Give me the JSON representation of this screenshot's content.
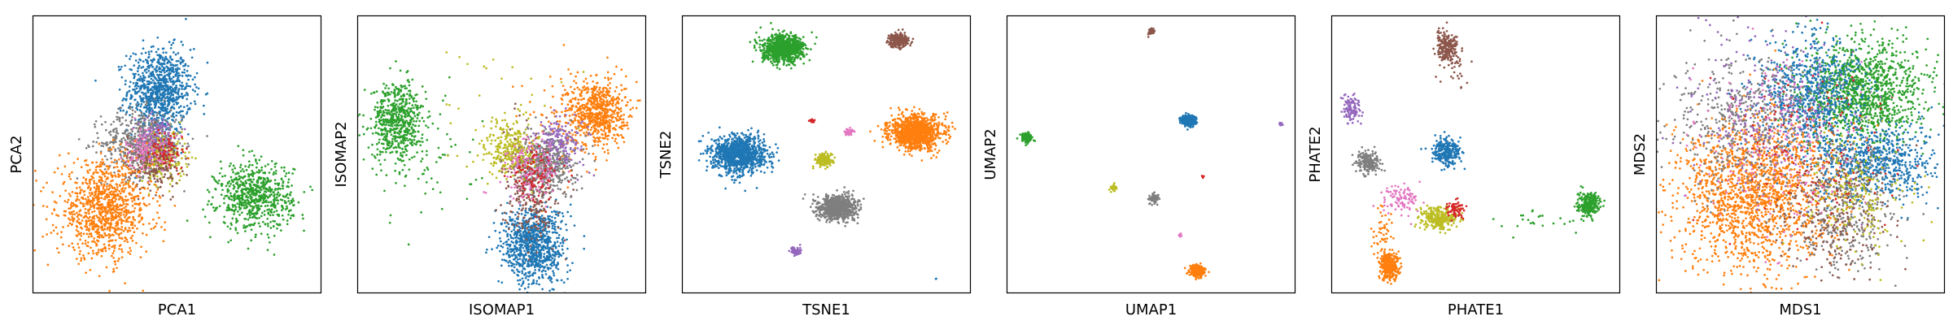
{
  "figure": {
    "panels": 6,
    "series_colors": {
      "blue": "#1f77b4",
      "orange": "#ff7f0e",
      "green": "#2ca02c",
      "red": "#d62728",
      "purple": "#9467bd",
      "brown": "#8c564b",
      "pink": "#e377c2",
      "gray": "#7f7f7f",
      "olive": "#bcbd22"
    }
  },
  "chart_data": [
    {
      "type": "scatter",
      "title": "",
      "xlabel": "PCA1",
      "ylabel": "PCA2",
      "xlim": [
        0,
        100
      ],
      "ylim": [
        0,
        100
      ],
      "ticks": "none",
      "grid": false,
      "clusters": [
        {
          "color": "#1f77b4",
          "x": 44,
          "y": 73,
          "sx": 5.5,
          "sy": 7.5,
          "n": 900
        },
        {
          "color": "#7f7f7f",
          "x": 38,
          "y": 54,
          "sx": 7.0,
          "sy": 6.0,
          "n": 600
        },
        {
          "color": "#bcbd22",
          "x": 45,
          "y": 49,
          "sx": 4.0,
          "sy": 5.0,
          "n": 220
        },
        {
          "color": "#8c564b",
          "x": 42,
          "y": 47,
          "sx": 4.5,
          "sy": 5.0,
          "n": 200
        },
        {
          "color": "#e377c2",
          "x": 40,
          "y": 52,
          "sx": 4.0,
          "sy": 4.0,
          "n": 150
        },
        {
          "color": "#9467bd",
          "x": 43,
          "y": 57,
          "sx": 3.5,
          "sy": 3.5,
          "n": 90
        },
        {
          "color": "#d62728",
          "x": 47,
          "y": 52,
          "sx": 3.0,
          "sy": 3.5,
          "n": 70
        },
        {
          "color": "#ff7f0e",
          "x": 25,
          "y": 30,
          "sx": 8.0,
          "sy": 8.5,
          "n": 1000
        },
        {
          "color": "#2ca02c",
          "x": 77,
          "y": 35,
          "sx": 6.5,
          "sy": 6.0,
          "n": 700
        }
      ]
    },
    {
      "type": "scatter",
      "title": "",
      "xlabel": "ISOMAP1",
      "ylabel": "ISOMAP2",
      "xlim": [
        0,
        100
      ],
      "ylim": [
        0,
        100
      ],
      "ticks": "none",
      "grid": false,
      "clusters": [
        {
          "color": "#2ca02c",
          "x": 14,
          "y": 62,
          "sx": 4.5,
          "sy": 7.0,
          "n": 600
        },
        {
          "color": "#2ca02c",
          "x": 22,
          "y": 50,
          "sx": 10.0,
          "sy": 12.0,
          "n": 60
        },
        {
          "color": "#ff7f0e",
          "x": 83,
          "y": 65,
          "sx": 5.0,
          "sy": 6.0,
          "n": 700
        },
        {
          "color": "#ff7f0e",
          "x": 70,
          "y": 60,
          "sx": 8.0,
          "sy": 10.0,
          "n": 80
        },
        {
          "color": "#1f77b4",
          "x": 61,
          "y": 17,
          "sx": 5.5,
          "sy": 7.0,
          "n": 900
        },
        {
          "color": "#8c564b",
          "x": 60,
          "y": 38,
          "sx": 4.5,
          "sy": 9.0,
          "n": 350
        },
        {
          "color": "#7f7f7f",
          "x": 66,
          "y": 47,
          "sx": 5.0,
          "sy": 5.5,
          "n": 420
        },
        {
          "color": "#bcbd22",
          "x": 53,
          "y": 52,
          "sx": 4.0,
          "sy": 5.0,
          "n": 260
        },
        {
          "color": "#9467bd",
          "x": 71,
          "y": 55,
          "sx": 4.5,
          "sy": 5.0,
          "n": 160
        },
        {
          "color": "#e377c2",
          "x": 60,
          "y": 45,
          "sx": 5.0,
          "sy": 5.5,
          "n": 150
        },
        {
          "color": "#d62728",
          "x": 62,
          "y": 42,
          "sx": 4.0,
          "sy": 5.0,
          "n": 90
        },
        {
          "color": "#bcbd22",
          "x": 50,
          "y": 60,
          "sx": 15.0,
          "sy": 14.0,
          "n": 40
        }
      ]
    },
    {
      "type": "scatter",
      "title": "",
      "xlabel": "TSNE1",
      "ylabel": "TSNE2",
      "xlim": [
        0,
        100
      ],
      "ylim": [
        0,
        100
      ],
      "ticks": "none",
      "grid": false,
      "clusters": [
        {
          "color": "#2ca02c",
          "x": 35,
          "y": 88,
          "sx": 3.6,
          "sy": 2.4,
          "n": 900
        },
        {
          "color": "#8c564b",
          "x": 75,
          "y": 91,
          "sx": 1.8,
          "sy": 1.2,
          "n": 250
        },
        {
          "color": "#1f77b4",
          "x": 20,
          "y": 50,
          "sx": 4.5,
          "sy": 3.3,
          "n": 1100
        },
        {
          "color": "#ff7f0e",
          "x": 81,
          "y": 58,
          "sx": 4.5,
          "sy": 3.0,
          "n": 1100
        },
        {
          "color": "#bcbd22",
          "x": 49,
          "y": 48,
          "sx": 1.4,
          "sy": 1.1,
          "n": 180
        },
        {
          "color": "#7f7f7f",
          "x": 54,
          "y": 31,
          "sx": 3.3,
          "sy": 2.2,
          "n": 800
        },
        {
          "color": "#e377c2",
          "x": 58,
          "y": 58,
          "sx": 0.9,
          "sy": 0.7,
          "n": 40
        },
        {
          "color": "#d62728",
          "x": 45,
          "y": 62,
          "sx": 0.5,
          "sy": 0.4,
          "n": 20
        },
        {
          "color": "#9467bd",
          "x": 39,
          "y": 15,
          "sx": 0.9,
          "sy": 0.8,
          "n": 60
        },
        {
          "color": "#1f77b4",
          "x": 88,
          "y": 5,
          "sx": 0.3,
          "sy": 0.3,
          "n": 2
        }
      ]
    },
    {
      "type": "scatter",
      "title": "",
      "xlabel": "UMAP1",
      "ylabel": "UMAP2",
      "xlim": [
        0,
        100
      ],
      "ylim": [
        0,
        100
      ],
      "ticks": "none",
      "grid": false,
      "clusters": [
        {
          "color": "#8c564b",
          "x": 50,
          "y": 94,
          "sx": 0.5,
          "sy": 0.6,
          "n": 40
        },
        {
          "color": "#2ca02c",
          "x": 7,
          "y": 56,
          "sx": 0.9,
          "sy": 0.8,
          "n": 160
        },
        {
          "color": "#1f77b4",
          "x": 63,
          "y": 62,
          "sx": 1.2,
          "sy": 1.0,
          "n": 300
        },
        {
          "color": "#9467bd",
          "x": 95,
          "y": 61,
          "sx": 0.3,
          "sy": 0.3,
          "n": 15
        },
        {
          "color": "#d62728",
          "x": 68,
          "y": 42,
          "sx": 0.3,
          "sy": 0.3,
          "n": 8
        },
        {
          "color": "#bcbd22",
          "x": 37,
          "y": 38,
          "sx": 0.6,
          "sy": 0.6,
          "n": 30
        },
        {
          "color": "#7f7f7f",
          "x": 51,
          "y": 34,
          "sx": 0.8,
          "sy": 0.8,
          "n": 80
        },
        {
          "color": "#e377c2",
          "x": 60,
          "y": 21,
          "sx": 0.3,
          "sy": 0.3,
          "n": 10
        },
        {
          "color": "#ff7f0e",
          "x": 66,
          "y": 8,
          "sx": 1.2,
          "sy": 1.1,
          "n": 300
        }
      ]
    },
    {
      "type": "scatter",
      "title": "",
      "xlabel": "PHATE1",
      "ylabel": "PHATE2",
      "xlim": [
        0,
        100
      ],
      "ylim": [
        0,
        100
      ],
      "ticks": "none",
      "grid": false,
      "clusters": [
        {
          "color": "#8c564b",
          "x": 40,
          "y": 89,
          "sx": 2.0,
          "sy": 2.5,
          "n": 200
        },
        {
          "color": "#8c564b",
          "x": 42,
          "y": 82,
          "sx": 3.0,
          "sy": 4.0,
          "n": 40
        },
        {
          "color": "#9467bd",
          "x": 7,
          "y": 66,
          "sx": 1.5,
          "sy": 2.5,
          "n": 110
        },
        {
          "color": "#7f7f7f",
          "x": 13,
          "y": 47,
          "sx": 2.0,
          "sy": 2.0,
          "n": 200
        },
        {
          "color": "#1f77b4",
          "x": 40,
          "y": 51,
          "sx": 2.5,
          "sy": 2.3,
          "n": 280
        },
        {
          "color": "#2ca02c",
          "x": 89,
          "y": 32,
          "sx": 2.0,
          "sy": 2.0,
          "n": 250
        },
        {
          "color": "#2ca02c",
          "x": 72,
          "y": 26,
          "sx": 7.0,
          "sy": 3.0,
          "n": 25
        },
        {
          "color": "#bcbd22",
          "x": 37,
          "y": 27,
          "sx": 3.0,
          "sy": 2.0,
          "n": 280
        },
        {
          "color": "#e377c2",
          "x": 24,
          "y": 34,
          "sx": 3.5,
          "sy": 2.5,
          "n": 100
        },
        {
          "color": "#d62728",
          "x": 43,
          "y": 30,
          "sx": 1.5,
          "sy": 1.5,
          "n": 70
        },
        {
          "color": "#ff7f0e",
          "x": 20,
          "y": 10,
          "sx": 1.6,
          "sy": 2.5,
          "n": 350
        },
        {
          "color": "#ff7f0e",
          "x": 18,
          "y": 22,
          "sx": 2.0,
          "sy": 5.0,
          "n": 50
        }
      ]
    },
    {
      "type": "scatter",
      "title": "",
      "xlabel": "MDS1",
      "ylabel": "MDS2",
      "xlim": [
        0,
        100
      ],
      "ylim": [
        0,
        100
      ],
      "ticks": "none",
      "grid": false,
      "clusters": [
        {
          "color": "#2ca02c",
          "x": 72,
          "y": 73,
          "sx": 11.0,
          "sy": 9.0,
          "n": 1200
        },
        {
          "color": "#1f77b4",
          "x": 53,
          "y": 72,
          "sx": 9.0,
          "sy": 11.0,
          "n": 700
        },
        {
          "color": "#1f77b4",
          "x": 76,
          "y": 47,
          "sx": 11.0,
          "sy": 7.0,
          "n": 700
        },
        {
          "color": "#ff7f0e",
          "x": 34,
          "y": 35,
          "sx": 13.0,
          "sy": 14.0,
          "n": 1700
        },
        {
          "color": "#7f7f7f",
          "x": 30,
          "y": 62,
          "sx": 12.0,
          "sy": 12.0,
          "n": 500
        },
        {
          "color": "#7f7f7f",
          "x": 66,
          "y": 30,
          "sx": 9.0,
          "sy": 11.0,
          "n": 350
        },
        {
          "color": "#8c564b",
          "x": 62,
          "y": 30,
          "sx": 10.0,
          "sy": 12.0,
          "n": 250
        },
        {
          "color": "#bcbd22",
          "x": 70,
          "y": 36,
          "sx": 9.0,
          "sy": 10.0,
          "n": 200
        },
        {
          "color": "#9467bd",
          "x": 40,
          "y": 65,
          "sx": 14.0,
          "sy": 14.0,
          "n": 250
        },
        {
          "color": "#e377c2",
          "x": 40,
          "y": 55,
          "sx": 14.0,
          "sy": 15.0,
          "n": 180
        },
        {
          "color": "#d62728",
          "x": 55,
          "y": 55,
          "sx": 14.0,
          "sy": 14.0,
          "n": 120
        }
      ]
    }
  ]
}
